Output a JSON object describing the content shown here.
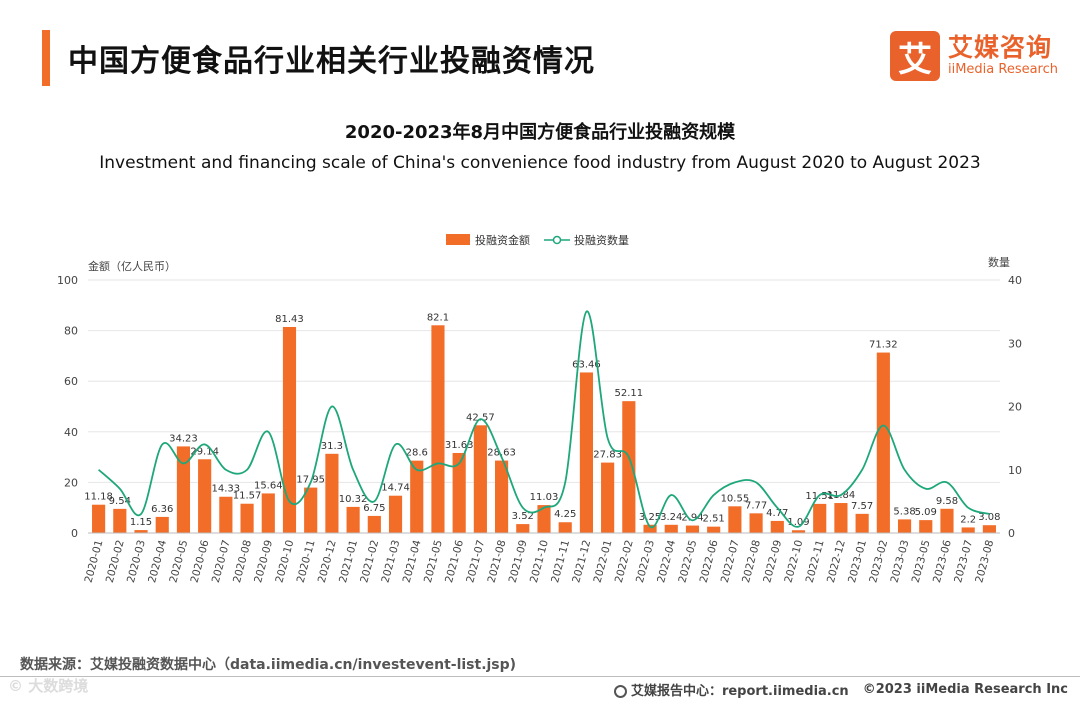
{
  "header": {
    "title": "中国方便食品行业相关行业投融资情况",
    "logo_mark": "艾",
    "logo_cn": "艾媒咨询",
    "logo_en": "iiMedia Research"
  },
  "footer": {
    "source": "数据来源：艾媒投融资数据中心（data.iimedia.cn/investevent-list.jsp)",
    "report_center": "艾媒报告中心：report.iimedia.cn",
    "copyright": "©2023  iiMedia Research  Inc",
    "watermark": "© 大数跨境"
  },
  "colors": {
    "accent": "#f26d28",
    "bar": "#f26d28",
    "line": "#1fa77c",
    "grid": "#e6e6e6"
  },
  "chart_data": {
    "type": "bar",
    "title": "2020-2023年8月中国方便食品行业投融资规模",
    "subtitle": "Investment and financing scale of China's convenience food industry from August 2020 to August 2023",
    "ylabel": "金额（亿人民币）",
    "y2label": "数量",
    "ylim": [
      0,
      100
    ],
    "y2lim": [
      0,
      40
    ],
    "yticks": [
      0,
      20,
      40,
      60,
      80,
      100
    ],
    "y2ticks": [
      0,
      10,
      20,
      30,
      40
    ],
    "legend_position": "top-center",
    "categories": [
      "2020-01",
      "2020-02",
      "2020-03",
      "2020-04",
      "2020-05",
      "2020-06",
      "2020-07",
      "2020-08",
      "2020-09",
      "2020-10",
      "2020-11",
      "2020-12",
      "2021-01",
      "2021-02",
      "2021-03",
      "2021-04",
      "2021-05",
      "2021-06",
      "2021-07",
      "2021-08",
      "2021-09",
      "2021-10",
      "2021-11",
      "2021-12",
      "2022-01",
      "2022-02",
      "2022-03",
      "2022-04",
      "2022-05",
      "2022-06",
      "2022-07",
      "2022-08",
      "2022-09",
      "2022-10",
      "2022-11",
      "2022-12",
      "2023-01",
      "2023-02",
      "2023-03",
      "2023-05",
      "2023-06",
      "2023-07",
      "2023-08"
    ],
    "series": [
      {
        "name": "投融资金额",
        "type": "bar",
        "axis": "left",
        "values": [
          11.18,
          9.54,
          1.15,
          6.36,
          34.23,
          29.14,
          14.33,
          11.57,
          15.64,
          81.43,
          17.95,
          31.3,
          10.32,
          6.75,
          14.74,
          28.6,
          82.1,
          31.63,
          42.57,
          28.63,
          3.52,
          11.03,
          4.25,
          63.46,
          27.83,
          52.11,
          3.25,
          3.24,
          2.94,
          2.51,
          10.55,
          7.77,
          4.77,
          1.09,
          11.51,
          11.84,
          7.57,
          71.32,
          5.38,
          5.09,
          9.58,
          2.2,
          3.08
        ],
        "labels": [
          "11.18",
          "9.54",
          "1.15",
          "6.36",
          "34.23",
          "29.14",
          "14.33",
          "11.57",
          "15.64",
          "81.43",
          "17.95",
          "31.3",
          "10.32",
          "6.75",
          "14.74",
          "28.6",
          "82.1",
          "31.63",
          "42.57",
          "28.63",
          "3.52",
          "11.03",
          "4.25",
          "63.46",
          "27.83",
          "52.11",
          "3.25",
          "3.24",
          "2.94",
          "2.51",
          "10.55",
          "7.77",
          "4.77",
          "1.09",
          "11.51",
          "11.84",
          "7.57",
          "71.32",
          "5.38",
          "5.09",
          "9.58",
          "2.2",
          "3.08"
        ]
      },
      {
        "name": "投融资数量",
        "type": "line",
        "axis": "right",
        "values": [
          10,
          7,
          3,
          14,
          11,
          14,
          10,
          10,
          16,
          5,
          8,
          20,
          10,
          5,
          14,
          10,
          11,
          11,
          18,
          12,
          4,
          4,
          8,
          35,
          15,
          12,
          1,
          6,
          2,
          6,
          8,
          8,
          4,
          1,
          6,
          6,
          10,
          17,
          10,
          7,
          8,
          4,
          3
        ]
      }
    ]
  }
}
